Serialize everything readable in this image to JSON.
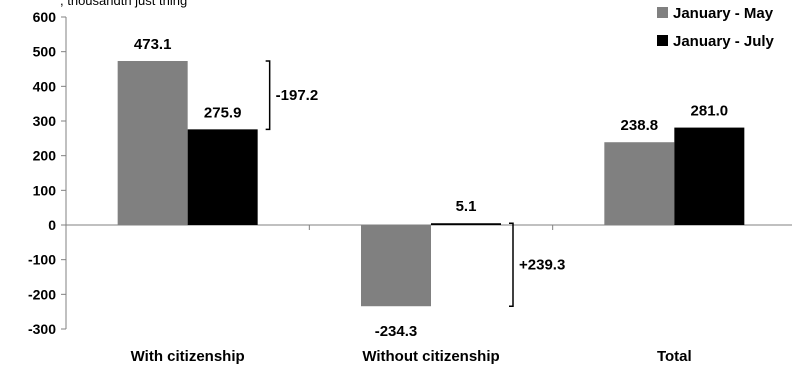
{
  "chart_data": {
    "type": "bar",
    "subtitle_fragment": ", thousandth just thing",
    "categories": [
      "With citizenship",
      "Without citizenship",
      "Total"
    ],
    "series": [
      {
        "name": "January - May",
        "values": [
          473.1,
          -234.3,
          238.8
        ],
        "labels": [
          "473.1",
          "-234.3",
          "238.8"
        ],
        "color": "#808080"
      },
      {
        "name": "January - July",
        "values": [
          275.9,
          5.1,
          281.0
        ],
        "labels": [
          "275.9",
          "5.1",
          "281.0"
        ],
        "color": "#000000"
      }
    ],
    "yticks": [
      600,
      500,
      400,
      300,
      200,
      100,
      0,
      -100,
      -200,
      -300
    ],
    "ylim": [
      -300,
      600
    ],
    "annotations": [
      {
        "text": "-197.2",
        "category": "With citizenship"
      },
      {
        "text": "+239.3",
        "category": "Without citizenship"
      }
    ],
    "legend_position": "top-right",
    "grid": false
  }
}
